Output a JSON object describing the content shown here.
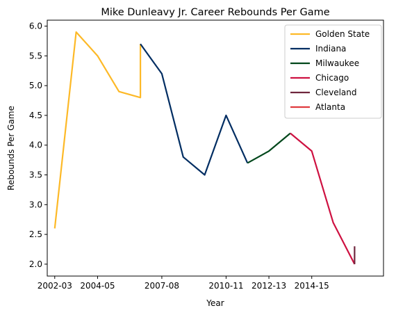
{
  "chart_data": {
    "type": "line",
    "title": "Mike Dunleavy Jr. Career Rebounds Per Game",
    "xlabel": "Year",
    "ylabel": "Rebounds Per Game",
    "xticks": [
      "2002-03",
      "2004-05",
      "2007-08",
      "2010-11",
      "2012-13",
      "2014-15"
    ],
    "ylim": [
      1.8,
      6.1
    ],
    "yticks": [
      2.0,
      2.5,
      3.0,
      3.5,
      4.0,
      4.5,
      5.0,
      5.5,
      6.0
    ],
    "grid": false,
    "legend_position": "top-right",
    "series": [
      {
        "name": "Golden State",
        "color": "#FDB927",
        "points": [
          [
            "2002-03",
            2.6
          ],
          [
            "2003-04",
            5.9
          ],
          [
            "2004-05",
            5.5
          ],
          [
            "2005-06",
            4.9
          ],
          [
            "2006-07",
            4.8
          ],
          [
            "2006-07",
            5.7
          ]
        ]
      },
      {
        "name": "Indiana",
        "color": "#002D62",
        "points": [
          [
            "2006-07",
            5.7
          ],
          [
            "2007-08",
            5.2
          ],
          [
            "2008-09",
            3.8
          ],
          [
            "2009-10",
            3.5
          ],
          [
            "2010-11",
            4.5
          ],
          [
            "2011-12",
            3.7
          ]
        ]
      },
      {
        "name": "Milwaukee",
        "color": "#00471B",
        "points": [
          [
            "2011-12",
            3.7
          ],
          [
            "2012-13",
            3.9
          ],
          [
            "2013-14",
            4.2
          ]
        ]
      },
      {
        "name": "Chicago",
        "color": "#CE1141",
        "points": [
          [
            "2013-14",
            4.2
          ],
          [
            "2014-15",
            3.9
          ],
          [
            "2015-16",
            2.7
          ],
          [
            "2016-17",
            2.0
          ]
        ]
      },
      {
        "name": "Cleveland",
        "color": "#6F263D",
        "points": [
          [
            "2016-17",
            2.0
          ],
          [
            "2016-17",
            2.3
          ]
        ]
      },
      {
        "name": "Atlanta",
        "color": "#E03A3E",
        "points": [
          [
            "2016-17",
            2.0
          ]
        ]
      }
    ]
  }
}
